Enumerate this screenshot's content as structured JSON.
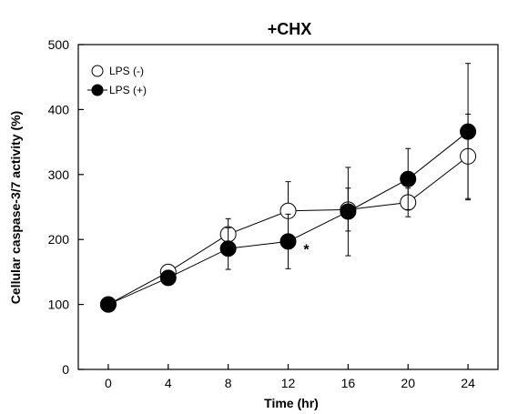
{
  "chart_data": {
    "type": "line",
    "title": "+CHX",
    "xlabel": "Time (hr)",
    "ylabel": "Cellular caspase-3/7 activity (%)",
    "x": [
      0,
      4,
      8,
      12,
      16,
      20,
      24
    ],
    "xlim": [
      -2,
      26
    ],
    "ylim": [
      0,
      500
    ],
    "xticks": [
      "0",
      "4",
      "8",
      "12",
      "16",
      "20",
      "24"
    ],
    "yticks": [
      "0",
      "100",
      "200",
      "300",
      "400",
      "500"
    ],
    "grid": false,
    "legend_position": "top-left",
    "series": [
      {
        "name": "LPS (-)",
        "marker": "open-circle",
        "values": [
          100,
          150,
          208,
          244,
          246,
          257,
          328
        ],
        "error": [
          0,
          5,
          24,
          45,
          33,
          22,
          65
        ]
      },
      {
        "name": "LPS (+)",
        "marker": "filled-circle",
        "values": [
          100,
          141,
          186,
          197,
          243,
          293,
          366
        ],
        "error": [
          0,
          5,
          32,
          42,
          68,
          47,
          105
        ]
      }
    ],
    "annotations": [
      {
        "text": "*",
        "x": 12,
        "y": 197
      }
    ]
  }
}
